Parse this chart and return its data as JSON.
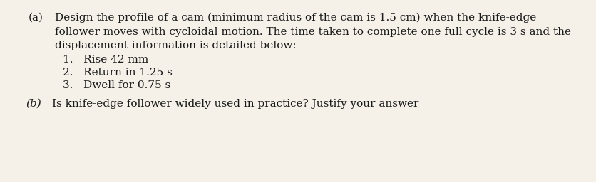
{
  "background_color": "#f5f0e8",
  "text_color": "#1a1a1a",
  "part_a_label": "(a)",
  "part_a_line1": "Design the profile of a cam (minimum radius of the cam is 1.5 cm) when the knife-edge",
  "part_a_line2": "follower moves with cycloidal motion. The time taken to complete one full cycle is 3 s and the",
  "part_a_line3": "displacement information is detailed below:",
  "item1": "1.   Rise 42 mm",
  "item2": "2.   Return in 1.25 s",
  "item3": "3.   Dwell for 0.75 s",
  "part_b_label": "(b)",
  "part_b_text": "Is knife-edge follower widely used in practice? Justify your answer",
  "font_size_main": 11.0,
  "font_size_b": 11.0
}
